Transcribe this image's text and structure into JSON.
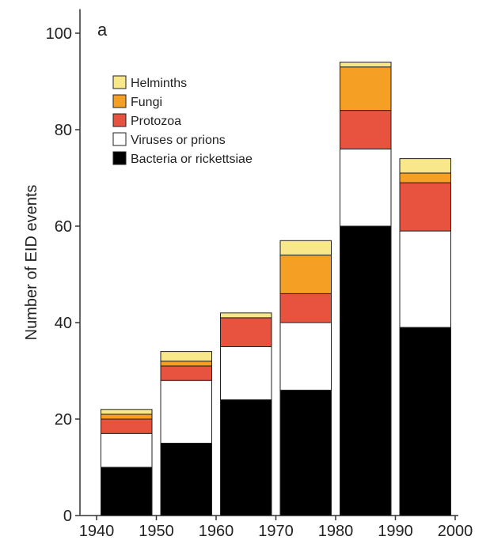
{
  "chart_data": {
    "type": "bar",
    "stacked": true,
    "panel_label": "a",
    "ylabel": "Number of EID events",
    "ylim": [
      0,
      105
    ],
    "xlim": [
      1940,
      2000
    ],
    "x_ticks": [
      1940,
      1950,
      1960,
      1970,
      1980,
      1990,
      2000
    ],
    "y_ticks": [
      0,
      20,
      40,
      60,
      80,
      100
    ],
    "bins": [
      {
        "start": 1940,
        "end": 1950
      },
      {
        "start": 1950,
        "end": 1960
      },
      {
        "start": 1960,
        "end": 1970
      },
      {
        "start": 1970,
        "end": 1980
      },
      {
        "start": 1980,
        "end": 1990
      },
      {
        "start": 1990,
        "end": 2000
      }
    ],
    "series": [
      {
        "name": "Bacteria or rickettsiae",
        "color": "#000000",
        "values": [
          10,
          15,
          24,
          26,
          60,
          39
        ]
      },
      {
        "name": "Viruses or prions",
        "color": "#ffffff",
        "values": [
          7,
          13,
          11,
          14,
          16,
          20
        ]
      },
      {
        "name": "Protozoa",
        "color": "#e8533f",
        "values": [
          3,
          3,
          6,
          6,
          8,
          10
        ]
      },
      {
        "name": "Fungi",
        "color": "#f5a025",
        "values": [
          1,
          1,
          0,
          8,
          9,
          2
        ]
      },
      {
        "name": "Helminths",
        "color": "#f8e88a",
        "values": [
          1,
          2,
          1,
          3,
          1,
          3
        ]
      }
    ],
    "legend": {
      "placement": "top-left",
      "order": [
        "Helminths",
        "Fungi",
        "Protozoa",
        "Viruses or prions",
        "Bacteria or rickettsiae"
      ]
    },
    "grid": false
  }
}
